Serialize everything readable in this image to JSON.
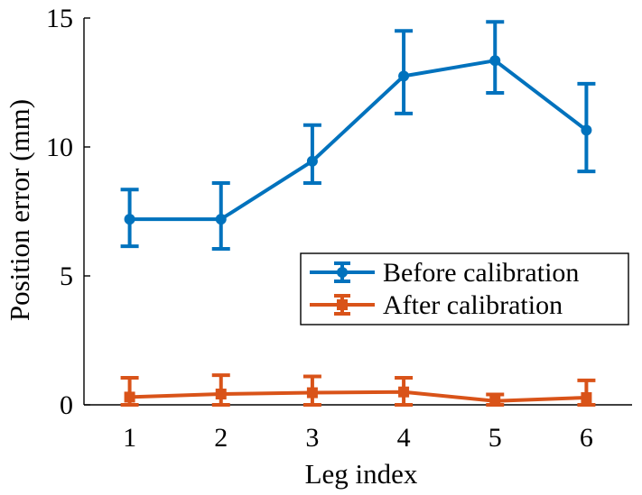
{
  "chart_data": {
    "type": "line",
    "title": "",
    "xlabel": "Leg index",
    "ylabel": "Position error (mm)",
    "x": [
      1,
      2,
      3,
      4,
      5,
      6
    ],
    "xlim": [
      0.5,
      6.5
    ],
    "ylim": [
      0,
      15
    ],
    "xticks": [
      "1",
      "2",
      "3",
      "4",
      "5",
      "6"
    ],
    "yticks": [
      "0",
      "5",
      "10",
      "15"
    ],
    "grid": false,
    "legend_position": "center-right",
    "series": [
      {
        "name": "Before calibration",
        "color": "#0072BD",
        "marker": "circle",
        "values": [
          7.2,
          7.2,
          9.45,
          12.75,
          13.35,
          10.65
        ],
        "err_low": [
          6.15,
          6.05,
          8.6,
          11.3,
          12.1,
          9.05
        ],
        "err_high": [
          8.35,
          8.6,
          10.85,
          14.5,
          14.85,
          12.45
        ]
      },
      {
        "name": "After calibration",
        "color": "#D95319",
        "marker": "square",
        "values": [
          0.3,
          0.42,
          0.47,
          0.5,
          0.15,
          0.28
        ],
        "err_low": [
          0.0,
          0.0,
          0.0,
          0.0,
          0.0,
          0.0
        ],
        "err_high": [
          1.05,
          1.15,
          1.1,
          1.05,
          0.4,
          0.95
        ]
      }
    ]
  }
}
